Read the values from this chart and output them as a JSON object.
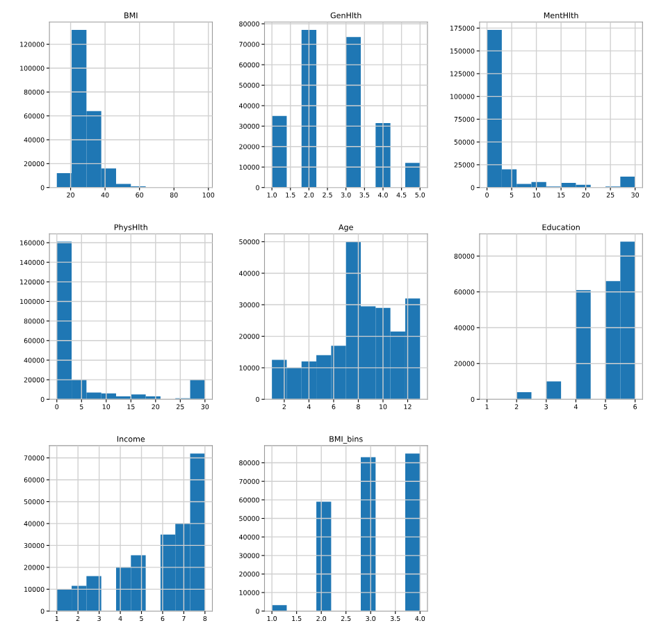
{
  "chart_data": [
    {
      "type": "histogram",
      "title": "BMI",
      "color": "#1f77b4",
      "grid": true,
      "bins": [
        12,
        20.6,
        29.2,
        37.8,
        46.4,
        55,
        63.6,
        72.2,
        80.8,
        89.4,
        98
      ],
      "values": [
        12000,
        132000,
        64000,
        16000,
        3000,
        1000,
        0,
        0,
        0,
        0
      ],
      "xlim": [
        7.7,
        102.3
      ],
      "ylim": [
        0,
        138600
      ],
      "xticks": [
        20,
        40,
        60,
        80,
        100
      ],
      "yticks": [
        0,
        20000,
        40000,
        60000,
        80000,
        100000,
        120000
      ]
    },
    {
      "type": "histogram",
      "title": "GenHlth",
      "color": "#1f77b4",
      "grid": true,
      "bins": [
        1,
        1.4,
        1.8,
        2.2,
        2.6,
        3,
        3.4,
        3.8,
        4.2,
        4.6,
        5
      ],
      "values": [
        35000,
        0,
        77000,
        0,
        0,
        73500,
        0,
        31500,
        0,
        12000
      ],
      "xlim": [
        0.8,
        5.2
      ],
      "ylim": [
        0,
        80850
      ],
      "xticks": [
        {
          "value": 1,
          "label": "1.0"
        },
        1.5,
        {
          "value": 2,
          "label": "2.0"
        },
        2.5,
        {
          "value": 3,
          "label": "3.0"
        },
        3.5,
        {
          "value": 4,
          "label": "4.0"
        },
        4.5,
        {
          "value": 5,
          "label": "5.0"
        }
      ],
      "yticks": [
        0,
        10000,
        20000,
        30000,
        40000,
        50000,
        60000,
        70000,
        80000
      ]
    },
    {
      "type": "histogram",
      "title": "MentHlth",
      "color": "#1f77b4",
      "grid": true,
      "bins": [
        0,
        3,
        6,
        9,
        12,
        15,
        18,
        21,
        24,
        27,
        30
      ],
      "values": [
        173000,
        20000,
        4000,
        6000,
        1000,
        5000,
        3000,
        0,
        1000,
        12000
      ],
      "xlim": [
        -1.5,
        31.5
      ],
      "ylim": [
        0,
        181650
      ],
      "xticks": [
        0,
        5,
        10,
        15,
        20,
        25,
        30
      ],
      "yticks": [
        0,
        25000,
        50000,
        75000,
        100000,
        125000,
        150000,
        175000
      ]
    },
    {
      "type": "histogram",
      "title": "PhysHlth",
      "color": "#1f77b4",
      "grid": true,
      "bins": [
        0,
        3,
        6,
        9,
        12,
        15,
        18,
        21,
        24,
        27,
        30
      ],
      "values": [
        161000,
        20000,
        7000,
        6000,
        3000,
        5000,
        3000,
        null,
        1000,
        20000
      ],
      "xlim": [
        -1.5,
        31.5
      ],
      "ylim": [
        0,
        169050
      ],
      "xticks": [
        0,
        5,
        10,
        15,
        20,
        25,
        30
      ],
      "yticks": [
        0,
        20000,
        40000,
        60000,
        80000,
        100000,
        120000,
        140000,
        160000
      ]
    },
    {
      "type": "histogram",
      "title": "Age",
      "color": "#1f77b4",
      "grid": true,
      "bins": [
        1,
        2.2,
        3.4,
        4.6,
        5.8,
        7,
        8.2,
        9.4,
        10.6,
        11.8,
        13
      ],
      "values": [
        12500,
        10000,
        12000,
        14000,
        17000,
        50000,
        29500,
        29000,
        21500,
        32000
      ],
      "xlim": [
        0.4,
        13.6
      ],
      "ylim": [
        0,
        52500
      ],
      "xticks": [
        2,
        4,
        6,
        8,
        10,
        12
      ],
      "yticks": [
        0,
        10000,
        20000,
        30000,
        40000,
        50000
      ]
    },
    {
      "type": "histogram",
      "title": "Education",
      "color": "#1f77b4",
      "grid": true,
      "bins": [
        1,
        1.5,
        2,
        2.5,
        3,
        3.5,
        4,
        4.5,
        5,
        5.5,
        6
      ],
      "values": [
        null,
        0,
        4000,
        0,
        10000,
        0,
        61000,
        0,
        66000,
        88000
      ],
      "xlim": [
        0.75,
        6.25
      ],
      "ylim": [
        0,
        92400
      ],
      "xticks": [
        1,
        2,
        3,
        4,
        5,
        6
      ],
      "yticks": [
        0,
        20000,
        40000,
        60000,
        80000
      ]
    },
    {
      "type": "histogram",
      "title": "Income",
      "color": "#1f77b4",
      "grid": true,
      "bins": [
        1,
        1.7,
        2.4,
        3.1,
        3.8,
        4.5,
        5.2,
        5.9,
        6.6,
        7.3,
        8
      ],
      "values": [
        9800,
        11500,
        16000,
        0,
        20000,
        25500,
        0,
        35000,
        40000,
        72000
      ],
      "xlim": [
        0.65,
        8.35
      ],
      "ylim": [
        0,
        75600
      ],
      "xticks": [
        1,
        2,
        3,
        4,
        5,
        6,
        7,
        8
      ],
      "yticks": [
        0,
        10000,
        20000,
        30000,
        40000,
        50000,
        60000,
        70000
      ]
    },
    {
      "type": "histogram",
      "title": "BMI_bins",
      "color": "#1f77b4",
      "grid": true,
      "bins": [
        1,
        1.3,
        1.6,
        1.9,
        2.2,
        2.5,
        2.8,
        3.1,
        3.4,
        3.7,
        4
      ],
      "values": [
        3200,
        0,
        0,
        59000,
        0,
        0,
        83000,
        0,
        0,
        85000
      ],
      "xlim": [
        0.85,
        4.15
      ],
      "ylim": [
        0,
        89250
      ],
      "xticks": [
        {
          "value": 1,
          "label": "1.0"
        },
        1.5,
        {
          "value": 2,
          "label": "2.0"
        },
        2.5,
        {
          "value": 3,
          "label": "3.0"
        },
        3.5,
        {
          "value": 4,
          "label": "4.0"
        }
      ],
      "yticks": [
        0,
        10000,
        20000,
        30000,
        40000,
        50000,
        60000,
        70000,
        80000
      ]
    }
  ]
}
